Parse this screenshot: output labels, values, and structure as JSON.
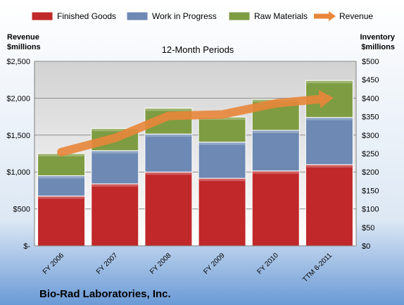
{
  "chart_data": {
    "type": "bar",
    "stacked": true,
    "title": "12-Month Periods",
    "company": "Bio-Rad Laboratories, Inc.",
    "left_axis_label_line1": "Revenue",
    "left_axis_label_line2": "$millions",
    "right_axis_label_line1": "Inventory",
    "right_axis_label_line2": "$millions",
    "categories": [
      "FY 2006",
      "FY 2007",
      "FY 2008",
      "FY 2009",
      "FY 2010",
      "TTM 6-2011"
    ],
    "series": [
      {
        "name": "Finished Goods",
        "axis": "right",
        "color": "#c0282a",
        "values": [
          135,
          168,
          200,
          183,
          203,
          220
        ]
      },
      {
        "name": "Work in Progress",
        "axis": "right",
        "color": "#6d89b4",
        "values": [
          55,
          90,
          103,
          98,
          110,
          128
        ]
      },
      {
        "name": "Raw Materials",
        "axis": "right",
        "color": "#7e9c42",
        "values": [
          60,
          60,
          70,
          68,
          84,
          100
        ]
      },
      {
        "name": "Revenue",
        "axis": "left",
        "type": "line",
        "color": "#e8863a",
        "values": [
          1270,
          1460,
          1760,
          1780,
          1930,
          2000
        ]
      }
    ],
    "left_axis": {
      "ylim": [
        0,
        2500
      ],
      "ticks": [
        "$-",
        "$500",
        "$1,000",
        "$1,500",
        "$2,000",
        "$2,500"
      ]
    },
    "right_axis": {
      "ylim": [
        0,
        500
      ],
      "ticks": [
        "$0",
        "$50",
        "$100",
        "$150",
        "$200",
        "$250",
        "$300",
        "$350",
        "$400",
        "$450",
        "$500"
      ]
    },
    "grid": true,
    "legend_position": "top"
  }
}
